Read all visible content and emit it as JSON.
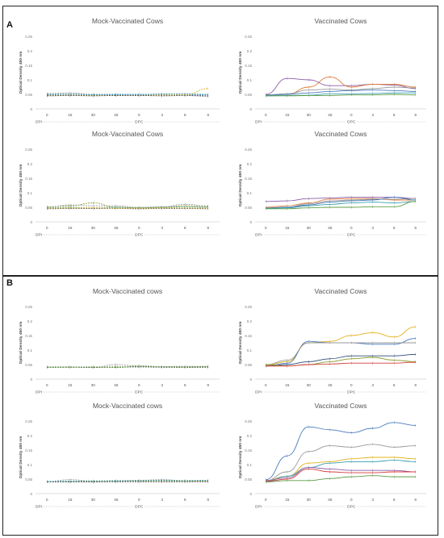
{
  "panels": [
    {
      "label": "A"
    },
    {
      "label": "B"
    }
  ],
  "colors": {
    "blue": "#4a7bbd",
    "orange": "#e07b39",
    "gray": "#999999",
    "gold": "#e3b21a",
    "teal": "#3a9fb0",
    "green": "#5d9c46",
    "navy": "#2c4d7a",
    "purple": "#8a5ca8",
    "red": "#d53d3d",
    "olive": "#8a9a2b",
    "dark": "#555555"
  },
  "chart_data": [
    {
      "type": "line",
      "panel": "A",
      "title": "Mock-Vaccinated Cows",
      "ylabel": "Optical Density 450 nm",
      "categories": [
        "0",
        "15",
        "30",
        "45",
        "0",
        "3",
        "6",
        "9"
      ],
      "ylim": [
        0,
        0.25
      ],
      "yticks": [
        "0",
        "0.05",
        "0.1",
        "0.15",
        "0.2",
        "0.25"
      ],
      "dpi_label": "DPI",
      "dpc_label": "DPC",
      "series": [
        {
          "color": "#999999",
          "dashed": true,
          "values": [
            0.053,
            0.055,
            0.05,
            0.05,
            0.048,
            0.052,
            0.05,
            0.045
          ]
        },
        {
          "color": "#4a7bbd",
          "dashed": true,
          "values": [
            0.048,
            0.05,
            0.048,
            0.048,
            0.047,
            0.048,
            0.047,
            0.048
          ]
        },
        {
          "color": "#e3b21a",
          "dashed": true,
          "values": [
            0.046,
            0.047,
            0.046,
            0.046,
            0.046,
            0.047,
            0.048,
            0.07
          ]
        },
        {
          "color": "#555555",
          "dashed": true,
          "values": [
            0.045,
            0.046,
            0.045,
            0.046,
            0.046,
            0.045,
            0.046,
            0.044
          ]
        },
        {
          "color": "#3a9fb0",
          "dashed": true,
          "values": [
            0.05,
            0.051,
            0.049,
            0.05,
            0.05,
            0.051,
            0.052,
            0.05
          ]
        }
      ]
    },
    {
      "type": "line",
      "panel": "A",
      "title": "Vaccinated Cows",
      "ylabel": "Optical Density 450 nm",
      "categories": [
        "0",
        "15",
        "30",
        "45",
        "0",
        "3",
        "6",
        "9"
      ],
      "ylim": [
        0,
        0.25
      ],
      "yticks": [
        "0",
        "0.05",
        "0.1",
        "0.15",
        "0.2",
        "0.25"
      ],
      "dpi_label": "DPI",
      "dpc_label": "DPC",
      "series": [
        {
          "color": "#8a5ca8",
          "values": [
            0.05,
            0.105,
            0.1,
            0.08,
            0.08,
            0.085,
            0.082,
            0.07
          ]
        },
        {
          "color": "#e07b39",
          "values": [
            0.048,
            0.05,
            0.075,
            0.11,
            0.075,
            0.085,
            0.085,
            0.075
          ]
        },
        {
          "color": "#999999",
          "values": [
            0.048,
            0.052,
            0.065,
            0.068,
            0.065,
            0.07,
            0.075,
            0.072
          ]
        },
        {
          "color": "#4a7bbd",
          "values": [
            0.047,
            0.05,
            0.055,
            0.06,
            0.063,
            0.065,
            0.063,
            0.06
          ]
        },
        {
          "color": "#3a9fb0",
          "values": [
            0.045,
            0.046,
            0.047,
            0.052,
            0.052,
            0.053,
            0.055,
            0.055
          ]
        },
        {
          "color": "#5d9c46",
          "values": [
            0.045,
            0.045,
            0.046,
            0.046,
            0.048,
            0.048,
            0.05,
            0.048
          ]
        }
      ]
    },
    {
      "type": "line",
      "panel": "A",
      "title": "Mock-Vaccinated Cows",
      "ylabel": "Optical Density 450 nm",
      "categories": [
        "0",
        "15",
        "30",
        "45",
        "0",
        "3",
        "6",
        "9"
      ],
      "ylim": [
        0,
        0.25
      ],
      "yticks": [
        "0",
        "0.05",
        "0.1",
        "0.15",
        "0.2",
        "0.25"
      ],
      "dpi_label": "DPI",
      "dpc_label": "DPC",
      "series": [
        {
          "color": "#8a9a2b",
          "dashed": true,
          "values": [
            0.052,
            0.055,
            0.065,
            0.05,
            0.048,
            0.05,
            0.055,
            0.052
          ]
        },
        {
          "color": "#999999",
          "dashed": true,
          "values": [
            0.05,
            0.058,
            0.055,
            0.055,
            0.05,
            0.052,
            0.06,
            0.055
          ]
        },
        {
          "color": "#3a9fb0",
          "dashed": true,
          "values": [
            0.048,
            0.05,
            0.048,
            0.05,
            0.048,
            0.05,
            0.052,
            0.05
          ]
        },
        {
          "color": "#555555",
          "dashed": true,
          "values": [
            0.045,
            0.046,
            0.046,
            0.046,
            0.045,
            0.046,
            0.046,
            0.045
          ]
        },
        {
          "color": "#e3b21a",
          "dashed": true,
          "values": [
            0.047,
            0.048,
            0.048,
            0.047,
            0.047,
            0.048,
            0.048,
            0.047
          ]
        }
      ]
    },
    {
      "type": "line",
      "panel": "A",
      "title": "Vaccinated Cows",
      "ylabel": "Optical Density 450 nm",
      "categories": [
        "0",
        "15",
        "30",
        "45",
        "0",
        "3",
        "6",
        "9"
      ],
      "ylim": [
        0,
        0.25
      ],
      "yticks": [
        "0",
        "0.05",
        "0.1",
        "0.15",
        "0.2",
        "0.25"
      ],
      "dpi_label": "DPI",
      "dpc_label": "DPC",
      "series": [
        {
          "color": "#8a5ca8",
          "values": [
            0.07,
            0.072,
            0.08,
            0.082,
            0.085,
            0.085,
            0.085,
            0.08
          ]
        },
        {
          "color": "#e07b39",
          "values": [
            0.05,
            0.055,
            0.065,
            0.078,
            0.08,
            0.08,
            0.075,
            0.075
          ]
        },
        {
          "color": "#999999",
          "values": [
            0.048,
            0.05,
            0.062,
            0.072,
            0.075,
            0.078,
            0.078,
            0.08
          ]
        },
        {
          "color": "#4a7bbd",
          "values": [
            0.047,
            0.05,
            0.058,
            0.068,
            0.072,
            0.075,
            0.085,
            0.075
          ]
        },
        {
          "color": "#3a9fb0",
          "values": [
            0.046,
            0.048,
            0.055,
            0.06,
            0.065,
            0.068,
            0.065,
            0.07
          ]
        },
        {
          "color": "#5d9c46",
          "values": [
            0.045,
            0.045,
            0.048,
            0.05,
            0.05,
            0.052,
            0.052,
            0.07
          ]
        }
      ]
    },
    {
      "type": "line",
      "panel": "B",
      "title": "Mock-Vaccinated cows",
      "ylabel": "Optical Density 450 nm",
      "categories": [
        "0",
        "15",
        "30",
        "45",
        "0",
        "3",
        "6",
        "9"
      ],
      "ylim": [
        0,
        0.25
      ],
      "yticks": [
        "0",
        "0.05",
        "0.1",
        "0.15",
        "0.2",
        "0.25"
      ],
      "dpi_label": "DPI",
      "dpc_label": "DPC",
      "series": [
        {
          "color": "#999999",
          "dashed": true,
          "values": [
            0.042,
            0.042,
            0.04,
            0.05,
            0.045,
            0.043,
            0.044,
            0.043
          ]
        },
        {
          "color": "#8a9a2b",
          "dashed": true,
          "values": [
            0.041,
            0.041,
            0.041,
            0.042,
            0.044,
            0.042,
            0.04,
            0.042
          ]
        },
        {
          "color": "#555555",
          "dashed": true,
          "values": [
            0.04,
            0.041,
            0.04,
            0.041,
            0.042,
            0.041,
            0.041,
            0.041
          ]
        },
        {
          "color": "#5d9c46",
          "dashed": true,
          "values": [
            0.041,
            0.041,
            0.042,
            0.04,
            0.045,
            0.043,
            0.042,
            0.044
          ]
        }
      ]
    },
    {
      "type": "line",
      "panel": "B",
      "title": "Vaccinated Cows",
      "ylabel": "Optical Density 450 nm",
      "categories": [
        "0",
        "15",
        "30",
        "45",
        "0",
        "3",
        "6",
        "9"
      ],
      "ylim": [
        0,
        0.25
      ],
      "yticks": [
        "0",
        "0.05",
        "0.1",
        "0.15",
        "0.2",
        "0.25"
      ],
      "dpi_label": "DPI",
      "dpc_label": "DPC",
      "series": [
        {
          "color": "#e3b21a",
          "values": [
            0.048,
            0.06,
            0.125,
            0.13,
            0.15,
            0.16,
            0.145,
            0.18
          ]
        },
        {
          "color": "#4a7bbd",
          "values": [
            0.045,
            0.055,
            0.13,
            0.125,
            0.125,
            0.12,
            0.12,
            0.14
          ]
        },
        {
          "color": "#999999",
          "values": [
            0.05,
            0.065,
            0.125,
            0.125,
            0.125,
            0.125,
            0.125,
            0.125
          ]
        },
        {
          "color": "#2c4d7a",
          "values": [
            0.045,
            0.05,
            0.06,
            0.07,
            0.08,
            0.08,
            0.08,
            0.085
          ]
        },
        {
          "color": "#8a9a2b",
          "values": [
            0.05,
            0.045,
            0.05,
            0.06,
            0.07,
            0.075,
            0.065,
            0.06
          ]
        },
        {
          "color": "#d53d3d",
          "values": [
            0.045,
            0.045,
            0.05,
            0.052,
            0.055,
            0.055,
            0.055,
            0.058
          ]
        }
      ]
    },
    {
      "type": "line",
      "panel": "B",
      "title": "Mock-Vaccinated cows",
      "ylabel": "Optical Density 450 nm",
      "categories": [
        "0",
        "15",
        "30",
        "45",
        "0",
        "3",
        "6",
        "9"
      ],
      "ylim": [
        0,
        0.25
      ],
      "yticks": [
        "0",
        "0.05",
        "0.1",
        "0.15",
        "0.2",
        "0.25"
      ],
      "dpi_label": "DPI",
      "dpc_label": "DPC",
      "series": [
        {
          "color": "#999999",
          "dashed": true,
          "values": [
            0.042,
            0.048,
            0.043,
            0.045,
            0.046,
            0.048,
            0.045,
            0.045
          ]
        },
        {
          "color": "#8a9a2b",
          "dashed": true,
          "values": [
            0.041,
            0.042,
            0.042,
            0.042,
            0.043,
            0.044,
            0.043,
            0.043
          ]
        },
        {
          "color": "#555555",
          "dashed": true,
          "values": [
            0.04,
            0.04,
            0.04,
            0.041,
            0.041,
            0.041,
            0.041,
            0.041
          ]
        },
        {
          "color": "#3a9fb0",
          "dashed": true,
          "values": [
            0.042,
            0.043,
            0.044,
            0.044,
            0.045,
            0.046,
            0.045,
            0.046
          ]
        }
      ]
    },
    {
      "type": "line",
      "panel": "B",
      "title": "Vaccinated Cows",
      "ylabel": "Optical Density 450 nm",
      "categories": [
        "0",
        "15",
        "30",
        "45",
        "0",
        "3",
        "6",
        "9"
      ],
      "ylim": [
        0,
        0.25
      ],
      "yticks": [
        "0",
        "0.05",
        "0.1",
        "0.15",
        "0.2",
        "0.25"
      ],
      "dpi_label": "DPI",
      "dpc_label": "DPC",
      "series": [
        {
          "color": "#4a7bbd",
          "values": [
            0.048,
            0.13,
            0.23,
            0.22,
            0.21,
            0.225,
            0.245,
            0.235
          ]
        },
        {
          "color": "#999999",
          "values": [
            0.045,
            0.075,
            0.145,
            0.165,
            0.16,
            0.17,
            0.16,
            0.165
          ]
        },
        {
          "color": "#e3b21a",
          "values": [
            0.045,
            0.06,
            0.105,
            0.11,
            0.12,
            0.125,
            0.125,
            0.12
          ]
        },
        {
          "color": "#3a9fb0",
          "values": [
            0.042,
            0.06,
            0.09,
            0.105,
            0.11,
            0.11,
            0.115,
            0.11
          ]
        },
        {
          "color": "#8a5ca8",
          "values": [
            0.045,
            0.055,
            0.09,
            0.085,
            0.08,
            0.08,
            0.08,
            0.075
          ]
        },
        {
          "color": "#d53d3d",
          "values": [
            0.042,
            0.05,
            0.085,
            0.075,
            0.072,
            0.072,
            0.075,
            0.075
          ]
        },
        {
          "color": "#5d9c46",
          "values": [
            0.04,
            0.045,
            0.045,
            0.052,
            0.058,
            0.062,
            0.058,
            0.058
          ]
        }
      ]
    }
  ]
}
